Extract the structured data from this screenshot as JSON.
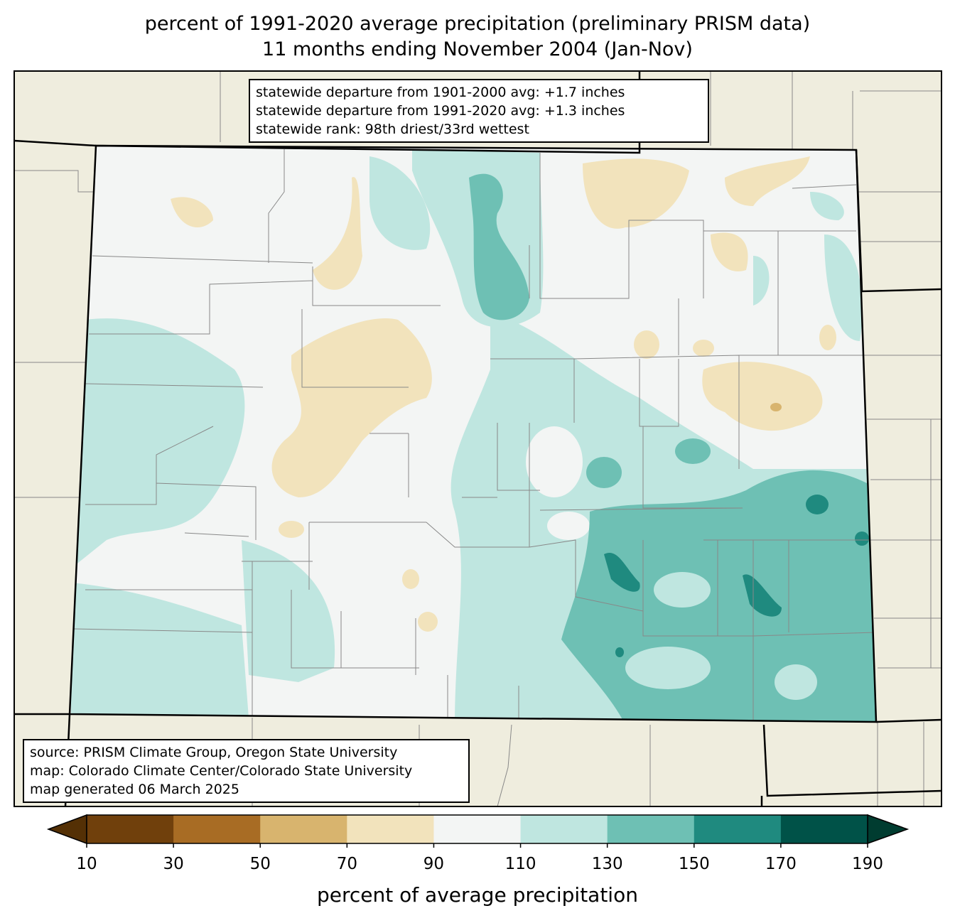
{
  "title": {
    "line1": "percent of 1991-2020 average precipitation (preliminary PRISM data)",
    "line2": "11 months ending November 2004 (Jan-Nov)"
  },
  "stats": {
    "line1": "statewide departure from 1901-2000 avg: +1.7 inches",
    "line2": "statewide departure from 1991-2020 avg: +1.3 inches",
    "line3": "statewide rank: 98th driest/33rd wettest"
  },
  "source": {
    "line1": "source: PRISM Climate Group, Oregon State University",
    "line2": "map: Colorado Climate Center/Colorado State University",
    "line3": "map generated 06 March 2025"
  },
  "colorbar": {
    "label": "percent of average precipitation",
    "ticks": [
      "10",
      "30",
      "50",
      "70",
      "90",
      "110",
      "130",
      "150",
      "170",
      "190"
    ],
    "under_color": "#543005",
    "over_color": "#003c30",
    "colors": [
      "#70400c",
      "#a86c24",
      "#d8b46e",
      "#f2e3bc",
      "#f3f5f4",
      "#bfe6e0",
      "#6ec0b4",
      "#1f8a7f",
      "#005248"
    ]
  },
  "map_colors": {
    "background": "#efedde",
    "normal": "#f3f5f4",
    "dry": "#f2e3bc",
    "wet1": "#bfe6e0",
    "wet2": "#6ec0b4",
    "wet3": "#1f8a7f"
  }
}
